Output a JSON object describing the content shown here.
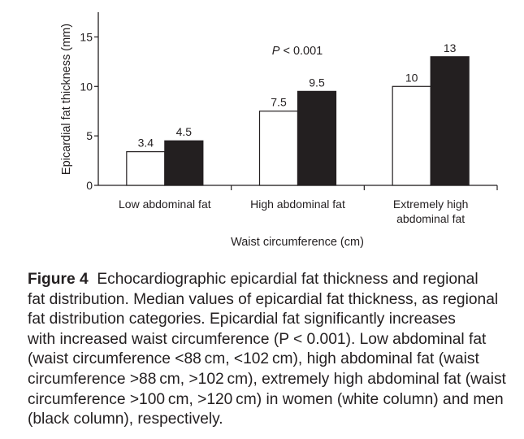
{
  "chart_data": {
    "type": "bar",
    "title": "",
    "xlabel": "Waist circumference (cm)",
    "ylabel": "Epicardial fat thickness (mm)",
    "ylim": [
      0,
      17.5
    ],
    "yticks": [
      0,
      5,
      10,
      15
    ],
    "categories": [
      [
        "Low abdominal fat"
      ],
      [
        "High abdominal fat"
      ],
      [
        "Extremely high",
        "abdominal fat"
      ]
    ],
    "series": [
      {
        "name": "Women (white column)",
        "color": "#ffffff",
        "stroke": "#231f20",
        "values": [
          3.4,
          7.5,
          10
        ]
      },
      {
        "name": "Men (black column)",
        "color": "#231f20",
        "stroke": "#231f20",
        "values": [
          4.5,
          9.5,
          13
        ]
      }
    ],
    "data_labels": [
      [
        "3.4",
        "7.5",
        "10"
      ],
      [
        "4.5",
        "9.5",
        "13"
      ]
    ],
    "annotation": {
      "italic": "P",
      "text": " < 0.001"
    },
    "grid": false,
    "legend": "none"
  },
  "caption": {
    "label": "Figure 4",
    "lines": [
      "Echocardiographic epicardial fat thickness and regional",
      "fat distribution. Median values of epicardial fat thickness, as regional",
      "fat distribution categories. Epicardial fat significantly increases",
      "with increased waist circumference (P < 0.001). Low abdominal fat",
      "(waist circumference <88 cm, <102 cm), high abdominal fat (waist",
      "circumference >88 cm, >102 cm), extremely high abdominal fat (waist",
      "circumference >100 cm, >120 cm) in women (white column) and men",
      "(black column), respectively."
    ]
  }
}
